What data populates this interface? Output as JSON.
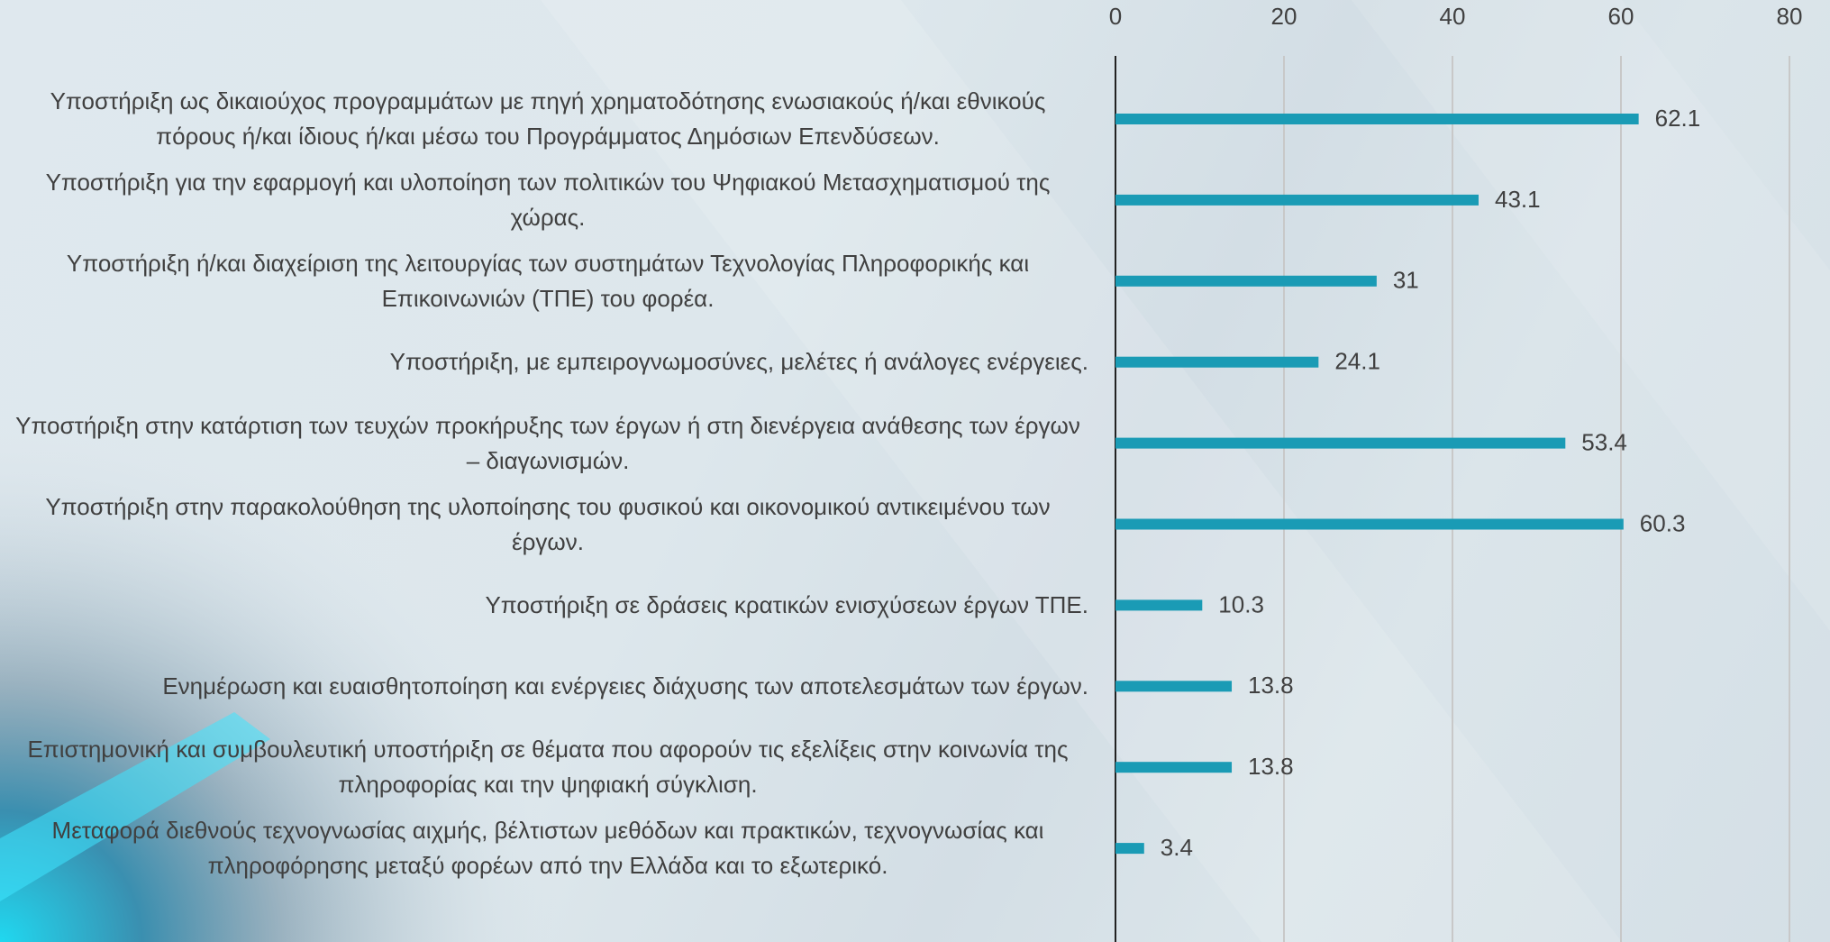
{
  "chart_data": {
    "type": "bar",
    "orientation": "horizontal",
    "categories": [
      "Υποστήριξη ως δικαιούχος προγραμμάτων με πηγή χρηματοδότησης ενωσιακούς ή/και εθνικούς πόρους ή/και ίδιους ή/και μέσω του Προγράμματος Δημόσιων Επενδύσεων.",
      "Υποστήριξη για την εφαρμογή και υλοποίηση των πολιτικών του Ψηφιακού Μετασχηματισμού της χώρας.",
      "Υποστήριξη ή/και διαχείριση της λειτουργίας των συστημάτων Τεχνολογίας Πληροφορικής και Επικοινωνιών (ΤΠΕ) του φορέα.",
      "Υποστήριξη, με εμπειρογνωμοσύνες, μελέτες ή ανάλογες ενέργειες.",
      "Υποστήριξη στην κατάρτιση των τευχών προκήρυξης των έργων ή στη διενέργεια ανάθεσης των έργων – διαγωνισμών.",
      "Υποστήριξη στην παρακολούθηση της υλοποίησης του φυσικού και οικονομικού αντικειμένου των έργων.",
      "Υποστήριξη σε δράσεις κρατικών ενισχύσεων έργων ΤΠΕ.",
      "Ενημέρωση και ευαισθητοποίηση και ενέργειες διάχυσης των αποτελεσμάτων των έργων.",
      "Επιστημονική και συμβουλευτική υποστήριξη σε θέματα που αφορούν τις εξελίξεις στην κοινωνία της πληροφορίας και την ψηφιακή σύγκλιση.",
      "Μεταφορά διεθνούς τεχνογνωσίας αιχμής, βέλτιστων μεθόδων και πρακτικών, τεχνογνωσίας και πληροφόρησης μεταξύ φορέων από την Ελλάδα και το εξωτερικό."
    ],
    "values": [
      62.1,
      43.1,
      31,
      24.1,
      53.4,
      60.3,
      10.3,
      13.8,
      13.8,
      3.4
    ],
    "color": "#1a9bb5",
    "xlim": [
      0,
      80
    ],
    "xticks": [
      0,
      20,
      40,
      60,
      80
    ],
    "grid": true
  }
}
